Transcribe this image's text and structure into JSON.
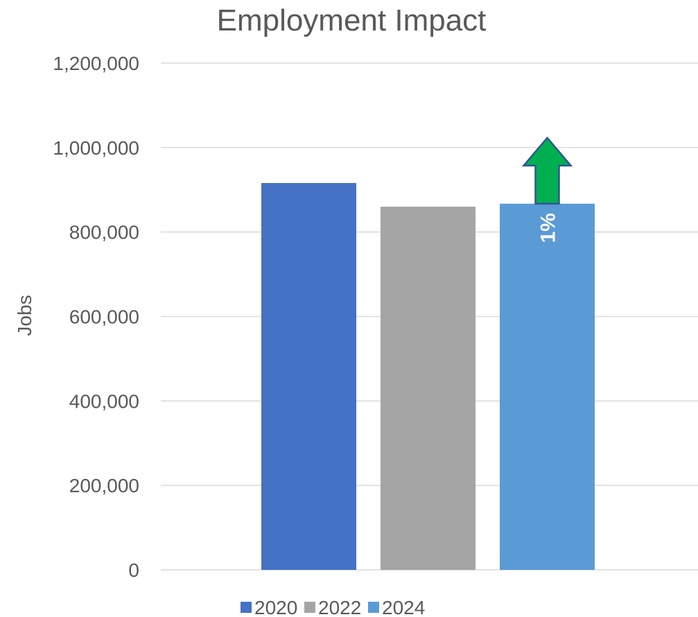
{
  "chart_data": {
    "type": "bar",
    "title": "Employment Impact",
    "xlabel": "",
    "ylabel": "Jobs",
    "ylim": [
      0,
      1200000
    ],
    "yticks": [
      0,
      200000,
      400000,
      600000,
      800000,
      1000000,
      1200000
    ],
    "ytick_labels": [
      "0",
      "200,000",
      "400,000",
      "600,000",
      "800,000",
      "1,000,000",
      "1,200,000"
    ],
    "grid": true,
    "legend_position": "bottom",
    "series": [
      {
        "name": "2020",
        "values": [
          916000
        ],
        "color": "#4472C4"
      },
      {
        "name": "2022",
        "values": [
          860000
        ],
        "color": "#A5A5A5"
      },
      {
        "name": "2024",
        "values": [
          867000
        ],
        "color": "#5B9BD5"
      }
    ],
    "annotations": [
      {
        "text": "1%",
        "series": "2024",
        "arrow": "up",
        "arrow_color": "#00B050",
        "arrow_border": "#2F5597"
      }
    ]
  }
}
